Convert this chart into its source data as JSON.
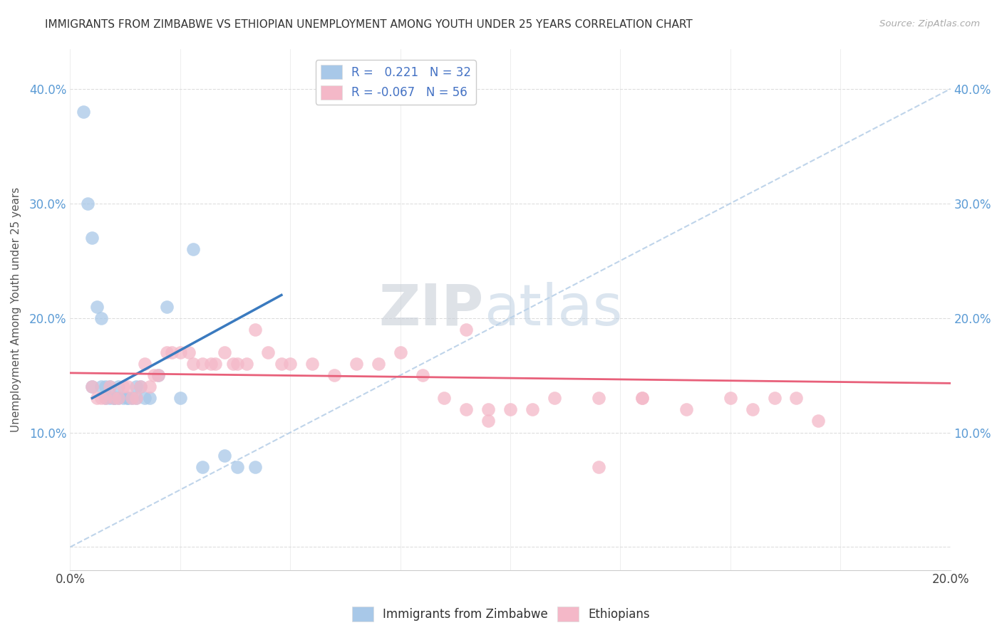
{
  "title": "IMMIGRANTS FROM ZIMBABWE VS ETHIOPIAN UNEMPLOYMENT AMONG YOUTH UNDER 25 YEARS CORRELATION CHART",
  "source": "Source: ZipAtlas.com",
  "ylabel": "Unemployment Among Youth under 25 years",
  "xlim": [
    0.0,
    0.2
  ],
  "ylim": [
    -0.02,
    0.435
  ],
  "blue_color": "#a8c8e8",
  "pink_color": "#f4b8c8",
  "blue_line_color": "#3a7abf",
  "pink_line_color": "#e8607a",
  "dashed_line_color": "#b8d0e8",
  "watermark_zip": "ZIP",
  "watermark_atlas": "atlas",
  "blue_scatter_x": [
    0.003,
    0.004,
    0.005,
    0.005,
    0.006,
    0.007,
    0.007,
    0.008,
    0.008,
    0.009,
    0.009,
    0.01,
    0.01,
    0.011,
    0.011,
    0.012,
    0.013,
    0.013,
    0.014,
    0.015,
    0.015,
    0.016,
    0.017,
    0.018,
    0.02,
    0.022,
    0.025,
    0.028,
    0.03,
    0.035,
    0.038,
    0.042
  ],
  "blue_scatter_y": [
    0.38,
    0.3,
    0.27,
    0.14,
    0.21,
    0.2,
    0.14,
    0.13,
    0.14,
    0.13,
    0.14,
    0.13,
    0.13,
    0.14,
    0.13,
    0.13,
    0.13,
    0.13,
    0.13,
    0.14,
    0.13,
    0.14,
    0.13,
    0.13,
    0.15,
    0.21,
    0.13,
    0.26,
    0.07,
    0.08,
    0.07,
    0.07
  ],
  "pink_scatter_x": [
    0.005,
    0.006,
    0.007,
    0.008,
    0.009,
    0.01,
    0.011,
    0.012,
    0.013,
    0.014,
    0.015,
    0.016,
    0.017,
    0.018,
    0.019,
    0.02,
    0.022,
    0.023,
    0.025,
    0.027,
    0.028,
    0.03,
    0.032,
    0.033,
    0.035,
    0.037,
    0.038,
    0.04,
    0.042,
    0.045,
    0.048,
    0.05,
    0.055,
    0.06,
    0.065,
    0.07,
    0.075,
    0.08,
    0.085,
    0.09,
    0.095,
    0.1,
    0.105,
    0.11,
    0.12,
    0.13,
    0.14,
    0.15,
    0.155,
    0.16,
    0.165,
    0.17,
    0.09,
    0.095,
    0.12,
    0.13
  ],
  "pink_scatter_y": [
    0.14,
    0.13,
    0.13,
    0.13,
    0.14,
    0.13,
    0.13,
    0.14,
    0.14,
    0.13,
    0.13,
    0.14,
    0.16,
    0.14,
    0.15,
    0.15,
    0.17,
    0.17,
    0.17,
    0.17,
    0.16,
    0.16,
    0.16,
    0.16,
    0.17,
    0.16,
    0.16,
    0.16,
    0.19,
    0.17,
    0.16,
    0.16,
    0.16,
    0.15,
    0.16,
    0.16,
    0.17,
    0.15,
    0.13,
    0.12,
    0.12,
    0.12,
    0.12,
    0.13,
    0.13,
    0.13,
    0.12,
    0.13,
    0.12,
    0.13,
    0.13,
    0.11,
    0.19,
    0.11,
    0.07,
    0.13
  ],
  "blue_line_x": [
    0.005,
    0.048
  ],
  "blue_line_y": [
    0.13,
    0.22
  ],
  "pink_line_x": [
    0.0,
    0.2
  ],
  "pink_line_y": [
    0.152,
    0.143
  ]
}
